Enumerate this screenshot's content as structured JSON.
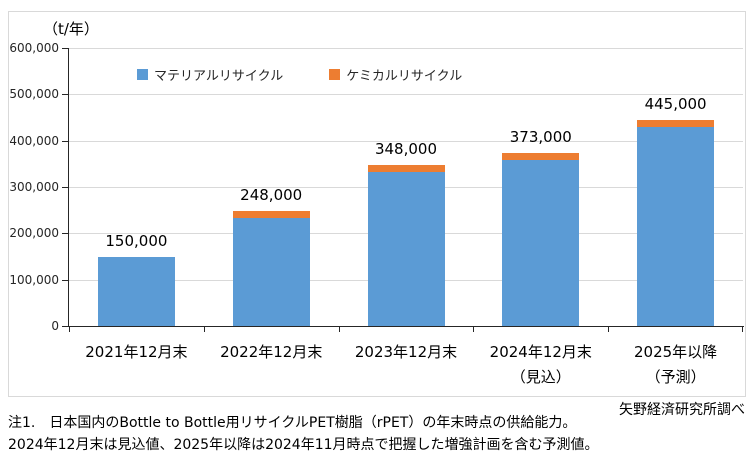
{
  "chart_data": {
    "type": "bar",
    "stacked": true,
    "title": "",
    "unit_label": "（t/年）",
    "xlabel": "",
    "ylabel": "t/年",
    "ylim": [
      0,
      600000
    ],
    "grid": true,
    "legend_position": "top-inside",
    "grid_color": "#D9D9D9",
    "axis_color": "#262626",
    "border_color": "#D9D9D9",
    "yticks": [
      {
        "value": 0,
        "label": "0"
      },
      {
        "value": 100000,
        "label": "100,000"
      },
      {
        "value": 200000,
        "label": "200,000"
      },
      {
        "value": 300000,
        "label": "300,000"
      },
      {
        "value": 400000,
        "label": "400,000"
      },
      {
        "value": 500000,
        "label": "500,000"
      },
      {
        "value": 600000,
        "label": "600,000"
      }
    ],
    "categories": [
      {
        "line1": "2021年12月末",
        "line2": ""
      },
      {
        "line1": "2022年12月末",
        "line2": ""
      },
      {
        "line1": "2023年12月末",
        "line2": ""
      },
      {
        "line1": "2024年12月末",
        "line2": "（見込）"
      },
      {
        "line1": "2025年以降",
        "line2": "（予測）"
      }
    ],
    "series": [
      {
        "name": "マテリアルリサイクル",
        "color": "#5B9BD5",
        "values": [
          150000,
          234000,
          333000,
          358000,
          430000
        ]
      },
      {
        "name": "ケミカルリサイクル",
        "color": "#ED7D31",
        "values": [
          0,
          14000,
          15000,
          15000,
          15000
        ]
      }
    ],
    "totals": [
      150000,
      248000,
      348000,
      373000,
      445000
    ],
    "total_labels": [
      "150,000",
      "248,000",
      "348,000",
      "373,000",
      "445,000"
    ]
  },
  "source": "矢野経済研究所調べ",
  "notes": [
    "注1.　日本国内のBottle to Bottle用リサイクルPET樹脂（rPET）の年末時点の供給能力。",
    "2024年12月末は見込値、2025年以降は2024年11月時点で把握した増強計画を含む予測値。"
  ]
}
